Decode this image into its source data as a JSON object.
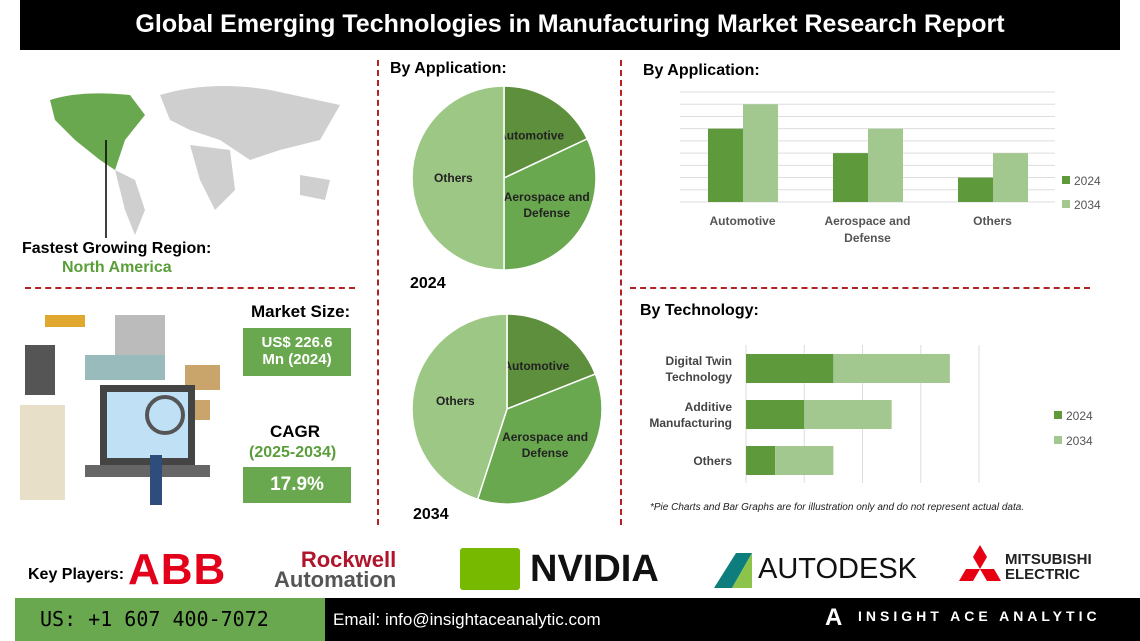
{
  "title": "Global Emerging Technologies in Manufacturing Market Research Report",
  "region": {
    "label": "Fastest Growing Region:",
    "value": "North America"
  },
  "market_size": {
    "label": "Market Size:",
    "value_line1": "US$ 226.6",
    "value_line2": "Mn (2024)"
  },
  "cagr": {
    "label": "CAGR",
    "period": "(2025-2034)",
    "value": "17.9%"
  },
  "colors": {
    "dark_green": "#5e9a3c",
    "light_green": "#a3c88f",
    "accent_red": "#b22222",
    "footer_green": "#6aa84f"
  },
  "chart_data": [
    {
      "type": "pie",
      "title": "By Application:",
      "caption": "2024",
      "labels": [
        "Automotive",
        "Aerospace and Defense",
        "Others"
      ],
      "values": [
        18,
        32,
        50
      ],
      "colors": [
        "#5e8f3c",
        "#6aa84f",
        "#9dc784"
      ]
    },
    {
      "type": "pie",
      "title": "",
      "caption": "2034",
      "labels": [
        "Automotive",
        "Aerospace and Defense",
        "Others"
      ],
      "values": [
        19,
        36,
        45
      ],
      "colors": [
        "#5e8f3c",
        "#6aa84f",
        "#9dc784"
      ]
    },
    {
      "type": "bar",
      "title": "By Application:",
      "categories": [
        "Automotive",
        "Aerospace and Defense",
        "Others"
      ],
      "series": [
        {
          "name": "2024",
          "values": [
            6,
            4,
            2
          ]
        },
        {
          "name": "2034",
          "values": [
            8,
            6,
            4
          ]
        }
      ],
      "ylim": [
        0,
        9
      ],
      "grid": true,
      "legend": "right"
    },
    {
      "type": "bar",
      "orientation": "horizontal",
      "stacked": true,
      "title": "By Technology:",
      "categories": [
        "Digital Twin Technology",
        "Additive Manufacturing",
        "Others"
      ],
      "series": [
        {
          "name": "2024",
          "values": [
            1.5,
            1,
            0.5
          ]
        },
        {
          "name": "2034",
          "values": [
            2,
            1.5,
            1
          ]
        }
      ],
      "xlim": [
        0,
        4
      ],
      "grid": true,
      "legend": "right"
    }
  ],
  "disclaimer": "*Pie Charts and Bar Graphs are for illustration only and do not represent actual data.",
  "key_players": {
    "label": "Key Players:",
    "logos": [
      "ABB",
      "Rockwell",
      "Automation",
      "NVIDIA",
      "AUTODESK",
      "MITSUBISHI",
      "ELECTRIC"
    ]
  },
  "footer": {
    "phone": "US: +1 607 400-7072",
    "email": "Email: info@insightaceanalytic.com",
    "brand": "INSIGHT ACE ANALYTIC"
  }
}
